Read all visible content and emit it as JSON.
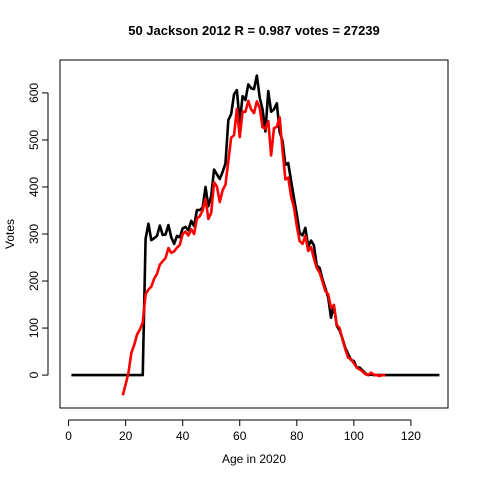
{
  "chart_data": {
    "type": "line",
    "title": "50 Jackson 2012 R = 0.987 votes = 27239",
    "xlabel": "Age in 2020",
    "ylabel": "Votes",
    "xlim": [
      -3,
      133
    ],
    "ylim": [
      -70,
      670
    ],
    "x_ticks": [
      0,
      20,
      40,
      60,
      80,
      100,
      120
    ],
    "y_ticks": [
      0,
      100,
      200,
      300,
      400,
      500,
      600
    ],
    "grid": false,
    "legend": "none",
    "series": [
      {
        "color": "#000000",
        "x": [
          1,
          26,
          27,
          28,
          29,
          30,
          31,
          32,
          33,
          34,
          35,
          36,
          37,
          38,
          39,
          40,
          41,
          42,
          43,
          44,
          45,
          46,
          47,
          48,
          49,
          50,
          51,
          52,
          53,
          54,
          55,
          56,
          57,
          58,
          59,
          60,
          61,
          62,
          63,
          64,
          65,
          66,
          67,
          68,
          69,
          70,
          71,
          72,
          73,
          74,
          75,
          76,
          77,
          78,
          79,
          80,
          81,
          82,
          83,
          84,
          85,
          86,
          87,
          88,
          89,
          90,
          91,
          92,
          93,
          94,
          95,
          96,
          97,
          98,
          99,
          100,
          101,
          102,
          103,
          104,
          105,
          106,
          107,
          108,
          109,
          110,
          111,
          112,
          130
        ],
        "y": [
          0,
          0,
          290,
          322,
          287,
          291,
          296,
          318,
          298,
          299,
          319,
          293,
          279,
          296,
          293,
          312,
          315,
          308,
          328,
          317,
          351,
          351,
          356,
          400,
          359,
          381,
          437,
          427,
          417,
          432,
          450,
          542,
          555,
          597,
          606,
          537,
          593,
          585,
          618,
          610,
          608,
          637,
          590,
          565,
          518,
          604,
          560,
          565,
          578,
          517,
          498,
          447,
          451,
          413,
          377,
          342,
          302,
          297,
          313,
          273,
          286,
          276,
          233,
          228,
          204,
          185,
          165,
          122,
          149,
          105,
          95,
          78,
          58,
          45,
          32,
          30,
          16,
          16,
          10,
          4,
          0,
          1,
          0,
          0,
          0,
          0,
          0,
          0,
          0
        ]
      },
      {
        "color": "#ff0000",
        "x": [
          19,
          20,
          21,
          22,
          23,
          24,
          25,
          26,
          27,
          28,
          29,
          30,
          31,
          32,
          33,
          34,
          35,
          36,
          37,
          38,
          39,
          40,
          41,
          42,
          43,
          44,
          45,
          46,
          47,
          48,
          49,
          50,
          51,
          52,
          53,
          54,
          55,
          56,
          57,
          58,
          59,
          60,
          61,
          62,
          63,
          64,
          65,
          66,
          67,
          68,
          69,
          70,
          71,
          72,
          73,
          74,
          75,
          76,
          77,
          78,
          79,
          80,
          81,
          82,
          83,
          84,
          85,
          86,
          87,
          88,
          89,
          90,
          91,
          92,
          93,
          94,
          95,
          96,
          97,
          98,
          99,
          100,
          101,
          102,
          103,
          104,
          105,
          106,
          107,
          108,
          109,
          110,
          111
        ],
        "y": [
          -43,
          -20,
          5,
          47,
          64,
          86,
          97,
          112,
          172,
          182,
          188,
          205,
          215,
          235,
          242,
          249,
          270,
          260,
          263,
          271,
          277,
          300,
          305,
          297,
          310,
          300,
          333,
          338,
          350,
          375,
          332,
          345,
          410,
          401,
          368,
          393,
          405,
          455,
          505,
          510,
          566,
          506,
          560,
          560,
          583,
          565,
          557,
          582,
          568,
          527,
          524,
          540,
          467,
          525,
          528,
          548,
          478,
          416,
          420,
          380,
          357,
          317,
          285,
          279,
          296,
          264,
          272,
          248,
          228,
          218,
          199,
          179,
          172,
          143,
          149,
          107,
          100,
          76,
          55,
          37,
          34,
          25,
          16,
          12,
          8,
          2,
          0,
          5,
          1,
          0,
          -2,
          0,
          0
        ]
      }
    ]
  }
}
